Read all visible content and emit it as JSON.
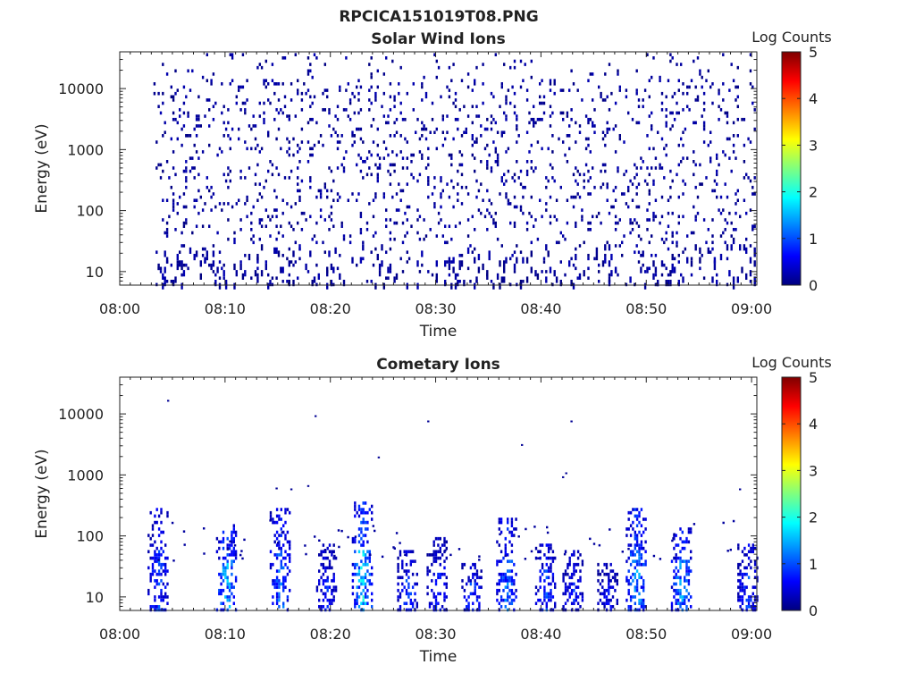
{
  "figure_title": "RPCICA151019T08.PNG",
  "colorbar": {
    "label": "Log Counts",
    "ticks": [
      "0",
      "1",
      "2",
      "3",
      "4",
      "5"
    ],
    "min": 0,
    "max": 5,
    "colormap": "jet",
    "colors": [
      "#00007f",
      "#0000ff",
      "#007fff",
      "#00ffff",
      "#7fff7f",
      "#ffff00",
      "#ff7f00",
      "#ff0000",
      "#7f0000"
    ]
  },
  "chart_data": [
    {
      "type": "heatmap",
      "title": "Solar Wind Ions",
      "xlabel": "Time",
      "ylabel": "Energy (eV)",
      "xlim": [
        "08:00",
        "09:00"
      ],
      "ylog": true,
      "ylim": [
        6,
        40000
      ],
      "x_ticks": [
        "08:00",
        "08:10",
        "08:20",
        "08:30",
        "08:40",
        "08:50",
        "09:00"
      ],
      "y_ticks": [
        "10",
        "100",
        "1000",
        "10000"
      ],
      "data_start_minute": 3.2,
      "data_end_minute": 60.3,
      "typical_log_counts": 0,
      "value_range": [
        0,
        0.3
      ],
      "description_of_pattern": "sparse single counts spread over all energies"
    },
    {
      "type": "heatmap",
      "title": "Cometary Ions",
      "xlabel": "Time",
      "ylabel": "Energy (eV)",
      "xlim": [
        "08:00",
        "09:00"
      ],
      "ylog": true,
      "ylim": [
        6,
        40000
      ],
      "x_ticks": [
        "08:00",
        "08:10",
        "08:20",
        "08:30",
        "08:40",
        "08:50",
        "09:00"
      ],
      "y_ticks": [
        "10",
        "100",
        "1000",
        "10000"
      ],
      "bursts": [
        {
          "minute": 3.6,
          "energy_top": 300,
          "peak_log_counts": 1.2
        },
        {
          "minute": 10.1,
          "energy_top": 160,
          "peak_log_counts": 2.0
        },
        {
          "minute": 15.2,
          "energy_top": 300,
          "peak_log_counts": 1.5
        },
        {
          "minute": 19.6,
          "energy_top": 80,
          "peak_log_counts": 1.0
        },
        {
          "minute": 23.0,
          "energy_top": 400,
          "peak_log_counts": 2.2
        },
        {
          "minute": 27.3,
          "energy_top": 60,
          "peak_log_counts": 1.2
        },
        {
          "minute": 30.1,
          "energy_top": 100,
          "peak_log_counts": 1.0
        },
        {
          "minute": 33.4,
          "energy_top": 40,
          "peak_log_counts": 1.2
        },
        {
          "minute": 36.7,
          "energy_top": 200,
          "peak_log_counts": 1.6
        },
        {
          "minute": 40.4,
          "energy_top": 80,
          "peak_log_counts": 1.2
        },
        {
          "minute": 43.0,
          "energy_top": 60,
          "peak_log_counts": 1.0
        },
        {
          "minute": 46.3,
          "energy_top": 40,
          "peak_log_counts": 0.8
        },
        {
          "minute": 49.0,
          "energy_top": 300,
          "peak_log_counts": 1.8
        },
        {
          "minute": 53.3,
          "energy_top": 150,
          "peak_log_counts": 1.8
        },
        {
          "minute": 59.6,
          "energy_top": 80,
          "peak_log_counts": 1.2
        }
      ]
    }
  ]
}
